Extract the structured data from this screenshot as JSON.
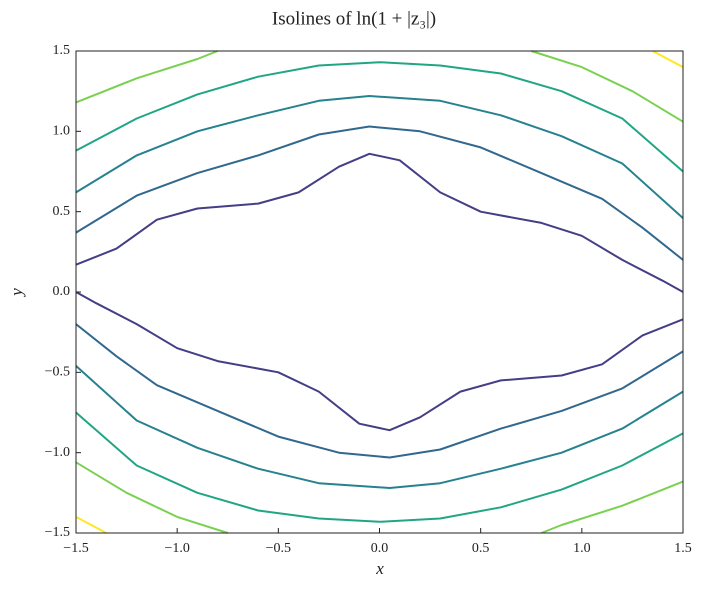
{
  "chart_data": {
    "type": "contour",
    "title": "Isolines of ln(1 + |z₃|)",
    "xlabel": "x",
    "ylabel": "y",
    "xlim": [
      -1.5,
      1.5
    ],
    "ylim": [
      -1.5,
      1.5
    ],
    "xticks": [
      {
        "value": -1.5,
        "label": "−1.5"
      },
      {
        "value": -1,
        "label": "−1.0"
      },
      {
        "value": -0.5,
        "label": "−0.5"
      },
      {
        "value": 0,
        "label": "0.0"
      },
      0.5,
      {
        "value": 1,
        "label": "1.0"
      },
      1.5
    ],
    "yticks": [
      {
        "value": -1.5,
        "label": "−1.5"
      },
      {
        "value": -1,
        "label": "−1.0"
      },
      {
        "value": -0.5,
        "label": "−0.5"
      },
      {
        "value": 0,
        "label": "0.0"
      },
      0.5,
      {
        "value": 1,
        "label": "1.0"
      },
      1.5
    ],
    "series": [
      {
        "color": "#433e85",
        "x": [
          -1.5,
          -1.3,
          -1.1,
          -0.9,
          -0.6,
          -0.4,
          -0.2,
          -0.05,
          0.1,
          0.3,
          0.5,
          0.8,
          1.0,
          1.2,
          1.4,
          1.5,
          null,
          -1.5,
          -1.4,
          -1.2,
          -1.0,
          -0.8,
          -0.5,
          -0.3,
          -0.1,
          0.05,
          0.2,
          0.4,
          0.6,
          0.9,
          1.1,
          1.3,
          1.5
        ],
        "y": [
          0.17,
          0.27,
          0.45,
          0.52,
          0.55,
          0.62,
          0.78,
          0.86,
          0.82,
          0.62,
          0.5,
          0.43,
          0.35,
          0.2,
          0.07,
          0.0,
          null,
          0.0,
          -0.07,
          -0.2,
          -0.35,
          -0.43,
          -0.5,
          -0.62,
          -0.82,
          -0.86,
          -0.78,
          -0.62,
          -0.55,
          -0.52,
          -0.45,
          -0.27,
          -0.17
        ]
      },
      {
        "color": "#31688e",
        "x": [
          -1.5,
          -1.2,
          -0.9,
          -0.6,
          -0.3,
          -0.05,
          0.2,
          0.5,
          0.8,
          1.1,
          1.3,
          1.5,
          null,
          -1.5,
          -1.3,
          -1.1,
          -0.8,
          -0.5,
          -0.2,
          0.05,
          0.3,
          0.6,
          0.9,
          1.2,
          1.5
        ],
        "y": [
          0.37,
          0.6,
          0.74,
          0.85,
          0.98,
          1.03,
          1.0,
          0.9,
          0.74,
          0.58,
          0.4,
          0.2,
          null,
          -0.2,
          -0.4,
          -0.58,
          -0.74,
          -0.9,
          -1.0,
          -1.03,
          -0.98,
          -0.85,
          -0.74,
          -0.6,
          -0.37
        ]
      },
      {
        "color": "#26828e",
        "x": [
          -1.5,
          -1.2,
          -0.9,
          -0.6,
          -0.3,
          -0.05,
          0.3,
          0.6,
          0.9,
          1.2,
          1.5,
          null,
          -1.5,
          -1.2,
          -0.9,
          -0.6,
          -0.3,
          0.05,
          0.3,
          0.6,
          0.9,
          1.2,
          1.5
        ],
        "y": [
          0.62,
          0.85,
          1.0,
          1.1,
          1.19,
          1.22,
          1.19,
          1.1,
          0.97,
          0.8,
          0.46,
          null,
          -0.46,
          -0.8,
          -0.97,
          -1.1,
          -1.19,
          -1.22,
          -1.19,
          -1.1,
          -1.0,
          -0.85,
          -0.62
        ]
      },
      {
        "color": "#21a585",
        "x": [
          -1.5,
          -1.2,
          -0.9,
          -0.6,
          -0.3,
          0.0,
          0.3,
          0.6,
          0.9,
          1.2,
          1.5,
          null,
          -1.5,
          -1.2,
          -0.9,
          -0.6,
          -0.3,
          0.0,
          0.3,
          0.6,
          0.9,
          1.2,
          1.5
        ],
        "y": [
          0.88,
          1.08,
          1.23,
          1.34,
          1.41,
          1.43,
          1.41,
          1.36,
          1.25,
          1.08,
          0.75,
          null,
          -0.75,
          -1.08,
          -1.25,
          -1.36,
          -1.41,
          -1.43,
          -1.41,
          -1.34,
          -1.23,
          -1.08,
          -0.88
        ]
      },
      {
        "color": "#7ad151",
        "x": [
          -1.5,
          -1.2,
          -0.9,
          -0.8,
          null,
          0.75,
          1.0,
          1.25,
          1.5,
          null,
          -1.5,
          -1.25,
          -1.0,
          -0.75,
          null,
          0.8,
          0.9,
          1.2,
          1.5
        ],
        "y": [
          1.18,
          1.33,
          1.45,
          1.5,
          null,
          1.5,
          1.4,
          1.25,
          1.06,
          null,
          -1.06,
          -1.25,
          -1.4,
          -1.5,
          null,
          -1.5,
          -1.45,
          -1.33,
          -1.18
        ]
      },
      {
        "color": "#fde725",
        "x": [
          1.35,
          1.5,
          null,
          -1.5,
          -1.35
        ],
        "y": [
          1.5,
          1.4,
          null,
          -1.4,
          -1.5
        ]
      }
    ]
  }
}
